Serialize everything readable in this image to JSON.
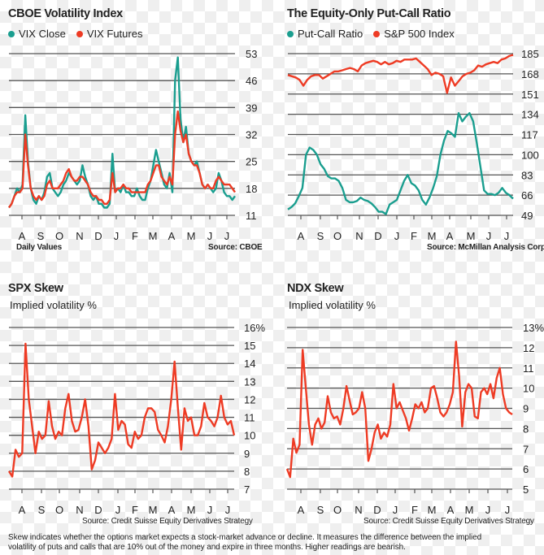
{
  "colors": {
    "teal": "#1a9e8f",
    "red": "#ee3b24",
    "grid": "#555555"
  },
  "footnote": [
    "Skew indicates whether the options market expects a stock-market advance or decline.  It measures the difference between the implied",
    "volatility of puts and calls that are 10% out of the money and expire in three months.  Higher readings are bearish."
  ],
  "chart_data": [
    {
      "type": "line",
      "title": "CBOE Volatility Index",
      "note": "Daily Values",
      "source": "Source: CBOE",
      "yticks": [
        "53",
        "46",
        "39",
        "32",
        "25",
        "18",
        "11"
      ],
      "ylim": [
        11,
        53
      ],
      "months": [
        "A",
        "S",
        "O",
        "N",
        "D",
        "J",
        "F",
        "M",
        "A",
        "M",
        "J",
        "J"
      ],
      "series": [
        {
          "name": "VIX Close",
          "color": "#1a9e8f",
          "values": [
            13,
            14,
            16,
            18,
            17,
            19,
            37,
            25,
            18,
            15,
            14,
            16,
            15,
            17,
            21,
            22,
            18,
            17,
            16,
            17,
            19,
            20,
            22,
            21,
            20,
            19,
            20,
            24,
            21,
            19,
            16,
            15,
            16,
            14,
            14,
            13,
            13,
            14,
            27,
            17,
            18,
            17,
            19,
            17,
            17,
            16,
            16,
            18,
            16,
            15,
            15,
            18,
            20,
            24,
            28,
            25,
            22,
            19,
            18,
            22,
            17,
            46,
            52,
            36,
            30,
            34,
            27,
            25,
            24,
            25,
            22,
            19,
            18,
            19,
            18,
            17,
            18,
            22,
            20,
            17,
            16,
            16,
            15,
            16
          ]
        },
        {
          "name": "VIX Futures",
          "color": "#ee3b24",
          "values": [
            13,
            14,
            16,
            17,
            17,
            18,
            32,
            24,
            18,
            16,
            15,
            16,
            15,
            16,
            19,
            20,
            18,
            18,
            18,
            19,
            20,
            22,
            23,
            21,
            20,
            20,
            21,
            21,
            20,
            19,
            17,
            16,
            16,
            15,
            15,
            14,
            14,
            15,
            22,
            17,
            18,
            18,
            19,
            18,
            18,
            17,
            17,
            17,
            17,
            17,
            17,
            19,
            20,
            22,
            24,
            24,
            21,
            20,
            19,
            21,
            19,
            32,
            38,
            33,
            30,
            32,
            27,
            25,
            24,
            24,
            22,
            19,
            18,
            19,
            18,
            18,
            20,
            21,
            20,
            19,
            19,
            19,
            18,
            17
          ]
        }
      ]
    },
    {
      "type": "line",
      "title": "The Equity-Only Put-Call Ratio",
      "source": "Source: McMillan Analysis Corp.",
      "yticks": [
        "185",
        "168",
        "151",
        "134",
        "117",
        "100",
        "83",
        "66",
        "49"
      ],
      "ylim": [
        49,
        185
      ],
      "months": [
        "A",
        "S",
        "O",
        "N",
        "D",
        "J",
        "F",
        "M",
        "A",
        "M",
        "J",
        "J"
      ],
      "series": [
        {
          "name": "Put-Call Ratio",
          "color": "#1a9e8f",
          "values": [
            54,
            56,
            59,
            65,
            72,
            100,
            106,
            104,
            100,
            92,
            88,
            82,
            80,
            80,
            78,
            72,
            62,
            60,
            60,
            61,
            64,
            62,
            61,
            59,
            56,
            52,
            52,
            50,
            58,
            60,
            62,
            70,
            78,
            83,
            76,
            74,
            70,
            62,
            58,
            64,
            72,
            82,
            100,
            112,
            120,
            118,
            115,
            135,
            128,
            132,
            135,
            128,
            110,
            90,
            70,
            67,
            67,
            66,
            68,
            72,
            68,
            66,
            63
          ]
        },
        {
          "name": "S&P 500 Index",
          "color": "#ee3b24",
          "values": [
            167,
            166,
            165,
            163,
            158,
            163,
            166,
            167,
            167,
            164,
            166,
            168,
            170,
            170,
            171,
            172,
            173,
            172,
            170,
            175,
            177,
            178,
            179,
            178,
            176,
            178,
            176,
            177,
            179,
            178,
            180,
            180,
            180,
            181,
            178,
            175,
            172,
            167,
            169,
            168,
            166,
            152,
            165,
            158,
            162,
            166,
            168,
            169,
            171,
            175,
            174,
            176,
            177,
            178,
            177,
            180,
            181,
            183,
            184
          ]
        }
      ]
    },
    {
      "type": "line",
      "title": "SPX Skew",
      "subtitle": "Implied volatility %",
      "source": "Source: Credit Suisse Equity Derivatives Strategy",
      "yticks": [
        "16%",
        "15",
        "14",
        "13",
        "12",
        "11",
        "10",
        "9",
        "8",
        "7"
      ],
      "ylim": [
        7,
        16
      ],
      "months": [
        "A",
        "S",
        "O",
        "N",
        "D",
        "J",
        "F",
        "M",
        "A",
        "M",
        "J",
        "J"
      ],
      "series": [
        {
          "name": "SPX Skew",
          "color": "#ee3b24",
          "values": [
            8,
            7.7,
            9.2,
            8.8,
            9,
            15.1,
            12,
            10.5,
            9,
            10.2,
            9.8,
            10,
            11.9,
            10.5,
            9.8,
            10.2,
            10,
            11.5,
            12.3,
            10.8,
            10.2,
            10.3,
            11,
            12,
            10.5,
            8.1,
            8.6,
            9.6,
            9.3,
            9,
            9.3,
            9.8,
            12.3,
            10.3,
            10.8,
            10.6,
            9.5,
            9.3,
            10.2,
            9.8,
            10,
            11,
            11.5,
            11.5,
            11.3,
            10.3,
            10,
            9.6,
            10.5,
            12,
            14.1,
            11.5,
            9.2,
            11.5,
            10.8,
            11,
            10,
            10,
            10.5,
            11.8,
            11,
            10.8,
            10.5,
            11,
            12.2,
            11,
            10.6,
            10.8,
            10
          ]
        }
      ]
    },
    {
      "type": "line",
      "title": "NDX Skew",
      "subtitle": "Implied volatility %",
      "source": "Source: Credit Suisse Equity Derivatives Strategy",
      "yticks": [
        "13%",
        "12",
        "11",
        "10",
        "9",
        "8",
        "7",
        "6",
        "5"
      ],
      "ylim": [
        5,
        13
      ],
      "months": [
        "A",
        "S",
        "O",
        "N",
        "D",
        "J",
        "F",
        "M",
        "A",
        "M",
        "J",
        "J"
      ],
      "series": [
        {
          "name": "NDX Skew",
          "color": "#ee3b24",
          "values": [
            6,
            5.6,
            7.5,
            6.8,
            7.2,
            11.9,
            10,
            8.2,
            7.2,
            8.2,
            8.5,
            8,
            8.3,
            9.6,
            8.8,
            8.5,
            8.6,
            8.2,
            9,
            10.1,
            9.4,
            8.7,
            8.8,
            9,
            9.8,
            9,
            6.4,
            7,
            7.8,
            8.2,
            7.5,
            7.8,
            7.6,
            8.2,
            10.2,
            9,
            9.3,
            8.9,
            8.5,
            7.9,
            8.5,
            9.2,
            9,
            9.3,
            8.8,
            9,
            10,
            10.1,
            9.5,
            8.8,
            8.6,
            8.8,
            9.2,
            9.8,
            12.3,
            10.6,
            8.1,
            9.8,
            10.2,
            10,
            8.6,
            8.5,
            9.8,
            10,
            9.7,
            10.2,
            9.5,
            10.5,
            11,
            9.7,
            9,
            8.8,
            8.7
          ]
        }
      ]
    }
  ]
}
